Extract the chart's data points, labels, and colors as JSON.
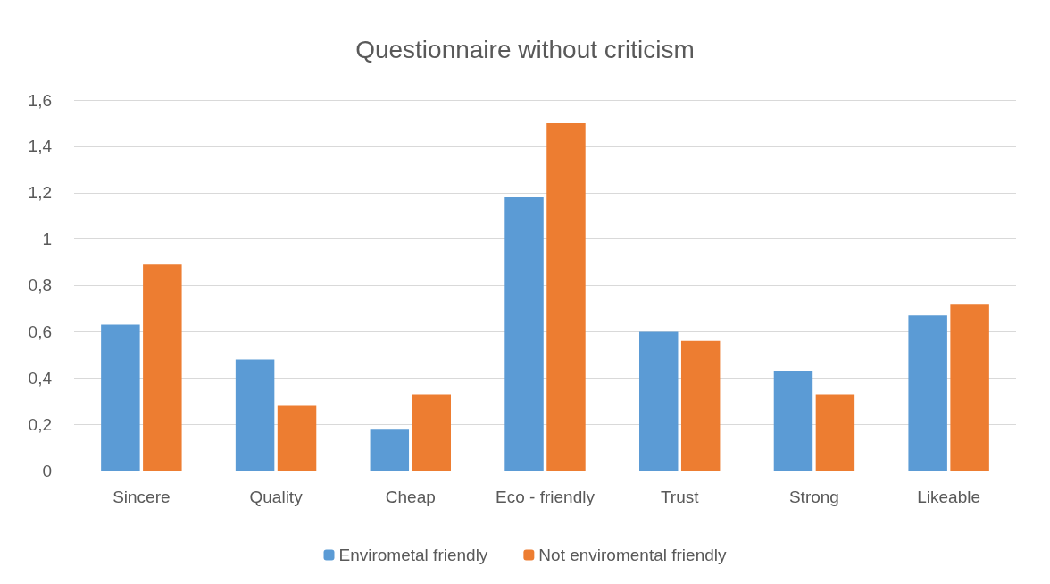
{
  "chart_data": {
    "type": "bar",
    "title": "Questionnaire without criticism",
    "categories": [
      "Sincere",
      "Quality",
      "Cheap",
      "Eco - friendly",
      "Trust",
      "Strong",
      "Likeable"
    ],
    "series": [
      {
        "name": "Envirometal friendly",
        "color": "#5b9bd5",
        "values": [
          0.63,
          0.48,
          0.18,
          1.18,
          0.6,
          0.43,
          0.67
        ]
      },
      {
        "name": "Not enviromental friendly",
        "color": "#ed7d31",
        "values": [
          0.89,
          0.28,
          0.33,
          1.5,
          0.56,
          0.33,
          0.72
        ]
      }
    ],
    "ylim": [
      0,
      1.6
    ],
    "yticks": [
      0,
      {
        "value": 0.2,
        "label": "0,2"
      },
      {
        "value": 0.4,
        "label": "0,4"
      },
      {
        "value": 0.6,
        "label": "0,6"
      },
      {
        "value": 0.8,
        "label": "0,8"
      },
      1,
      {
        "value": 1.2,
        "label": "1,2"
      },
      {
        "value": 1.4,
        "label": "1,4"
      },
      {
        "value": 1.6,
        "label": "1,6"
      }
    ],
    "grid": "y",
    "legend": "bottom"
  }
}
